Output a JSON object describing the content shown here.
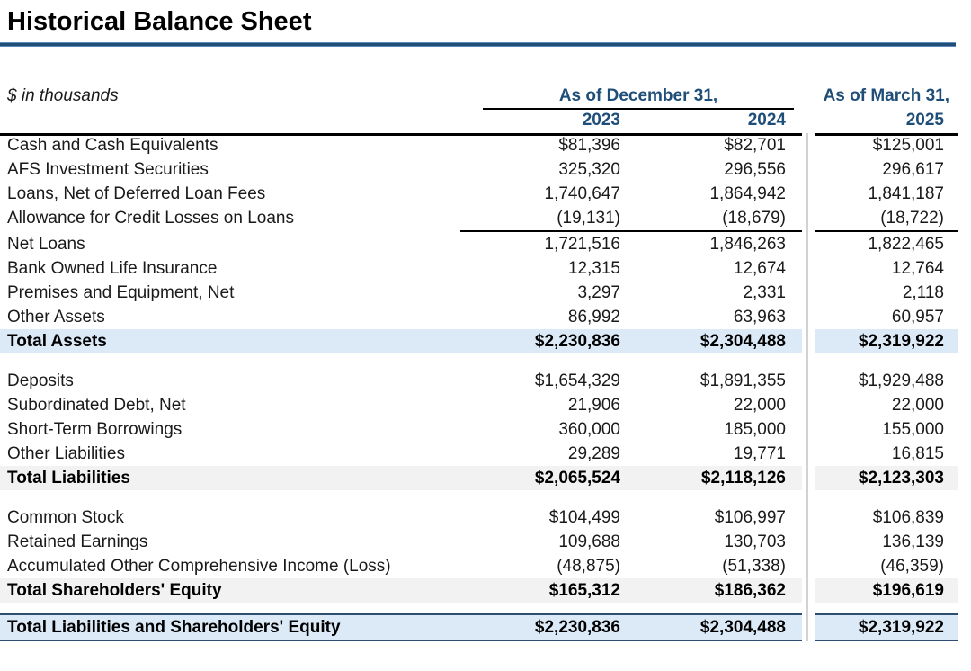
{
  "title": "Historical Balance Sheet",
  "units_label": "$ in thousands",
  "header": {
    "december_group": "As of December 31,",
    "march_group": "As of March 31,",
    "year_2023": "2023",
    "year_2024": "2024",
    "year_2025": "2025"
  },
  "colors": {
    "header_text_blue": "#1F4E79",
    "title_rule_blue": "#1F4E79",
    "total_row_blue_fill": "#DCE9F6",
    "total_row_gray_fill": "#F2F2F2",
    "column_divider_gray": "#D2D2D2",
    "grand_total_border": "#2D4D71"
  },
  "rows": [
    {
      "kind": "item",
      "label": "Cash and Cash Equivalents",
      "v2023": "$81,396",
      "v2024": "$82,701",
      "v2025": "$125,001"
    },
    {
      "kind": "item",
      "label": "AFS Investment Securities",
      "v2023": "325,320",
      "v2024": "296,556",
      "v2025": "296,617"
    },
    {
      "kind": "item",
      "label": "Loans, Net of Deferred Loan Fees",
      "v2023": "1,740,647",
      "v2024": "1,864,942",
      "v2025": "1,841,187"
    },
    {
      "kind": "item",
      "label": "Allowance for Credit Losses on Loans",
      "v2023": "(19,131)",
      "v2024": "(18,679)",
      "v2025": "(18,722)",
      "sum_border_below": true
    },
    {
      "kind": "item",
      "label": "Net Loans",
      "v2023": "1,721,516",
      "v2024": "1,846,263",
      "v2025": "1,822,465"
    },
    {
      "kind": "item",
      "label": "Bank Owned Life Insurance",
      "v2023": "12,315",
      "v2024": "12,674",
      "v2025": "12,764"
    },
    {
      "kind": "item",
      "label": "Premises and Equipment, Net",
      "v2023": "3,297",
      "v2024": "2,331",
      "v2025": "2,118"
    },
    {
      "kind": "item",
      "label": "Other Assets",
      "v2023": "86,992",
      "v2024": "63,963",
      "v2025": "60,957"
    },
    {
      "kind": "total_blue",
      "label": "Total Assets",
      "v2023": "$2,230,836",
      "v2024": "$2,304,488",
      "v2025": "$2,319,922"
    },
    {
      "kind": "gap",
      "height": 17
    },
    {
      "kind": "item",
      "label": "Deposits",
      "v2023": "$1,654,329",
      "v2024": "$1,891,355",
      "v2025": "$1,929,488"
    },
    {
      "kind": "item",
      "label": "Subordinated Debt, Net",
      "v2023": "21,906",
      "v2024": "22,000",
      "v2025": "22,000"
    },
    {
      "kind": "item",
      "label": "Short-Term Borrowings",
      "v2023": "360,000",
      "v2024": "185,000",
      "v2025": "155,000"
    },
    {
      "kind": "item",
      "label": "Other Liabilities",
      "v2023": "29,289",
      "v2024": "19,771",
      "v2025": "16,815"
    },
    {
      "kind": "total_gray",
      "label": "Total Liabilities",
      "v2023": "$2,065,524",
      "v2024": "$2,118,126",
      "v2025": "$2,123,303"
    },
    {
      "kind": "gap",
      "height": 17
    },
    {
      "kind": "item",
      "label": "Common Stock",
      "v2023": "$104,499",
      "v2024": "$106,997",
      "v2025": "$106,839"
    },
    {
      "kind": "item",
      "label": "Retained Earnings",
      "v2023": "109,688",
      "v2024": "130,703",
      "v2025": "136,139"
    },
    {
      "kind": "item",
      "label": "Accumulated Other Comprehensive Income (Loss)",
      "v2023": "(48,875)",
      "v2024": "(51,338)",
      "v2025": "(46,359)"
    },
    {
      "kind": "total_gray",
      "label": "Total Shareholders' Equity",
      "v2023": "$165,312",
      "v2024": "$186,362",
      "v2025": "$196,619"
    },
    {
      "kind": "gap",
      "height": 12
    },
    {
      "kind": "grand_total",
      "label": "Total Liabilities and Shareholders' Equity",
      "v2023": "$2,230,836",
      "v2024": "$2,304,488",
      "v2025": "$2,319,922"
    }
  ]
}
